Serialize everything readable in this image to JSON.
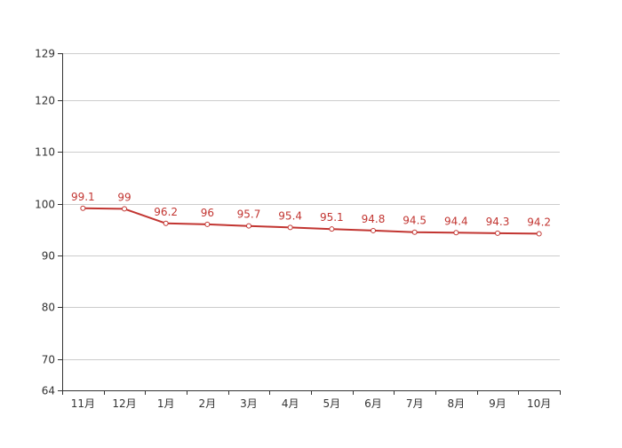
{
  "chart_data": {
    "type": "line",
    "categories": [
      "11月",
      "12月",
      "1月",
      "2月",
      "3月",
      "4月",
      "5月",
      "6月",
      "7月",
      "8月",
      "9月",
      "10月"
    ],
    "series": [
      {
        "values": [
          99.1,
          99,
          96.2,
          96,
          95.7,
          95.4,
          95.1,
          94.8,
          94.5,
          94.4,
          94.3,
          94.2
        ]
      }
    ],
    "data_labels": [
      "99.1",
      "99",
      "96.2",
      "96",
      "95.7",
      "95.4",
      "95.1",
      "94.8",
      "94.5",
      "94.4",
      "94.3",
      "94.2"
    ],
    "y_ticks": [
      "64",
      "70",
      "80",
      "90",
      "100",
      "110",
      "120",
      "129"
    ],
    "ylim": [
      64,
      129
    ],
    "grid": true,
    "line_color": "#c23531",
    "marker_fill": "#ffffff",
    "title": "",
    "xlabel": "",
    "ylabel": ""
  }
}
